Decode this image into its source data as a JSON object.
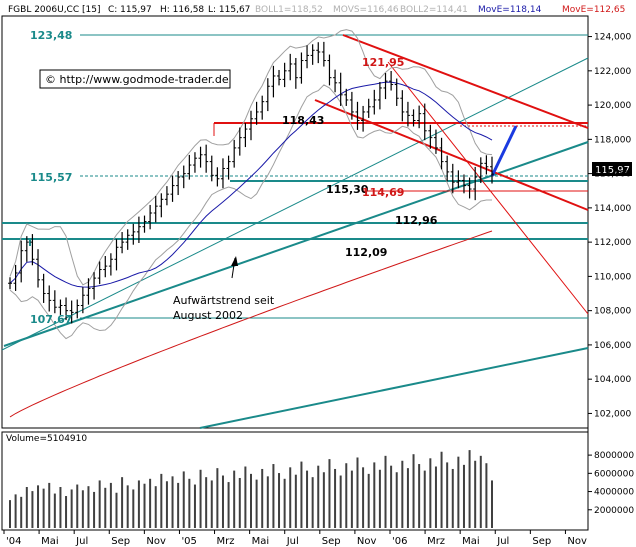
{
  "header": {
    "symbol": "FGBL 2006U,CC [15]",
    "close": "C: 115,97",
    "high": "H: 116,58",
    "low": "L: 115,67",
    "boll1": "BOLL1=118,52",
    "movs": "MOVS=116,46",
    "boll2": "BOLL2=114,41",
    "move_blue": "MovE=118,14",
    "move_red": "MovE=112,65"
  },
  "copyright": "© http://www.godmode-trader.de",
  "annotations": {
    "level_12348": "123,48",
    "level_12195": "121,95",
    "level_11843": "118,43",
    "level_11557": "115,57",
    "level_11530": "115,30",
    "level_11469": "114,69",
    "level_11296": "112,96",
    "level_11209": "112,09",
    "level_10767": "107,67",
    "trend_line1": "Aufwärtstrend seit",
    "trend_line2": "August 2002",
    "last_price": "115,97"
  },
  "volume_label": "Volume=5104910",
  "colors": {
    "price": "#000000",
    "bollinger": "#a0a0a0",
    "move_blue": "#1a1aa8",
    "move_red": "#d01818",
    "teal": "#1a8a8a",
    "channel_red": "#e01010",
    "projection": "#1a3ae0"
  },
  "chart_data": [
    {
      "type": "line",
      "title": "FGBL 2006U,CC [15]",
      "y_axis": {
        "ylim": [
          101.5,
          124.5
        ],
        "ticks": [
          "102,000",
          "104,000",
          "106,000",
          "108,000",
          "110,000",
          "112,000",
          "114,000",
          "116,000",
          "118,000",
          "120,000",
          "122,000",
          "124,000"
        ],
        "grid": false
      },
      "x_axis": {
        "ticks": [
          "'04",
          "Mai",
          "Jul",
          "Sep",
          "Nov",
          "'05",
          "Mrz",
          "Mai",
          "Jul",
          "Sep",
          "Nov",
          "'06",
          "Mrz",
          "Mai",
          "Jul",
          "Sep",
          "Nov"
        ]
      },
      "series": [
        {
          "style": "ohlc bars, approximate weekly closes",
          "values": [
            109.6,
            110.2,
            111.5,
            112.0,
            111.0,
            109.8,
            109.0,
            108.6,
            108.2,
            108.3,
            108.0,
            107.9,
            108.3,
            108.9,
            109.3,
            109.9,
            110.4,
            110.6,
            111.0,
            111.7,
            112.0,
            112.4,
            112.6,
            112.9,
            113.2,
            113.7,
            114.1,
            114.5,
            114.8,
            115.3,
            115.8,
            116.0,
            116.5,
            116.9,
            117.1,
            116.7,
            115.9,
            115.7,
            116.3,
            116.7,
            117.5,
            118.1,
            118.6,
            119.2,
            119.6,
            120.2,
            121.1,
            121.7,
            121.5,
            122.0,
            122.4,
            121.6,
            122.6,
            122.9,
            123.2,
            123.1,
            122.6,
            121.6,
            121.3,
            120.6,
            120.3,
            119.6,
            119.1,
            119.6,
            119.9,
            120.3,
            121.0,
            121.4,
            121.2,
            120.4,
            119.6,
            119.4,
            119.1,
            119.5,
            118.5,
            118.1,
            117.5,
            116.7,
            116.1,
            115.5,
            115.6,
            115.3,
            115.1,
            115.8,
            116.6,
            116.4,
            115.97
          ]
        },
        {
          "name": "BOLL1",
          "value": 118.52
        },
        {
          "name": "MOVS",
          "value": 116.46
        },
        {
          "name": "BOLL2",
          "value": 114.41
        },
        {
          "name": "MovE (blue)",
          "value": 118.14
        },
        {
          "name": "MovE (red)",
          "value": 112.65
        }
      ],
      "horizontal_levels": [
        123.48,
        121.95,
        118.43,
        115.57,
        115.3,
        114.69,
        112.96,
        112.09,
        107.67
      ]
    },
    {
      "type": "bar",
      "title": "Volume=5104910",
      "y_axis": {
        "ticks": [
          "2000000",
          "4000000",
          "6000000",
          "8000000"
        ]
      },
      "values": [
        0.34,
        0.41,
        0.38,
        0.5,
        0.45,
        0.52,
        0.48,
        0.55,
        0.42,
        0.5,
        0.39,
        0.47,
        0.53,
        0.46,
        0.51,
        0.44,
        0.58,
        0.49,
        0.55,
        0.43,
        0.62,
        0.52,
        0.47,
        0.58,
        0.54,
        0.6,
        0.51,
        0.66,
        0.57,
        0.63,
        0.55,
        0.69,
        0.6,
        0.53,
        0.71,
        0.62,
        0.58,
        0.73,
        0.64,
        0.56,
        0.7,
        0.61,
        0.75,
        0.66,
        0.59,
        0.72,
        0.63,
        0.78,
        0.67,
        0.6,
        0.74,
        0.65,
        0.81,
        0.7,
        0.62,
        0.76,
        0.68,
        0.84,
        0.72,
        0.64,
        0.79,
        0.7,
        0.86,
        0.74,
        0.66,
        0.8,
        0.71,
        0.88,
        0.76,
        0.68,
        0.82,
        0.73,
        0.9,
        0.78,
        0.7,
        0.85,
        0.75,
        0.93,
        0.8,
        0.72,
        0.87,
        0.77,
        0.95,
        0.82,
        0.88,
        0.79,
        0.58
      ]
    }
  ]
}
